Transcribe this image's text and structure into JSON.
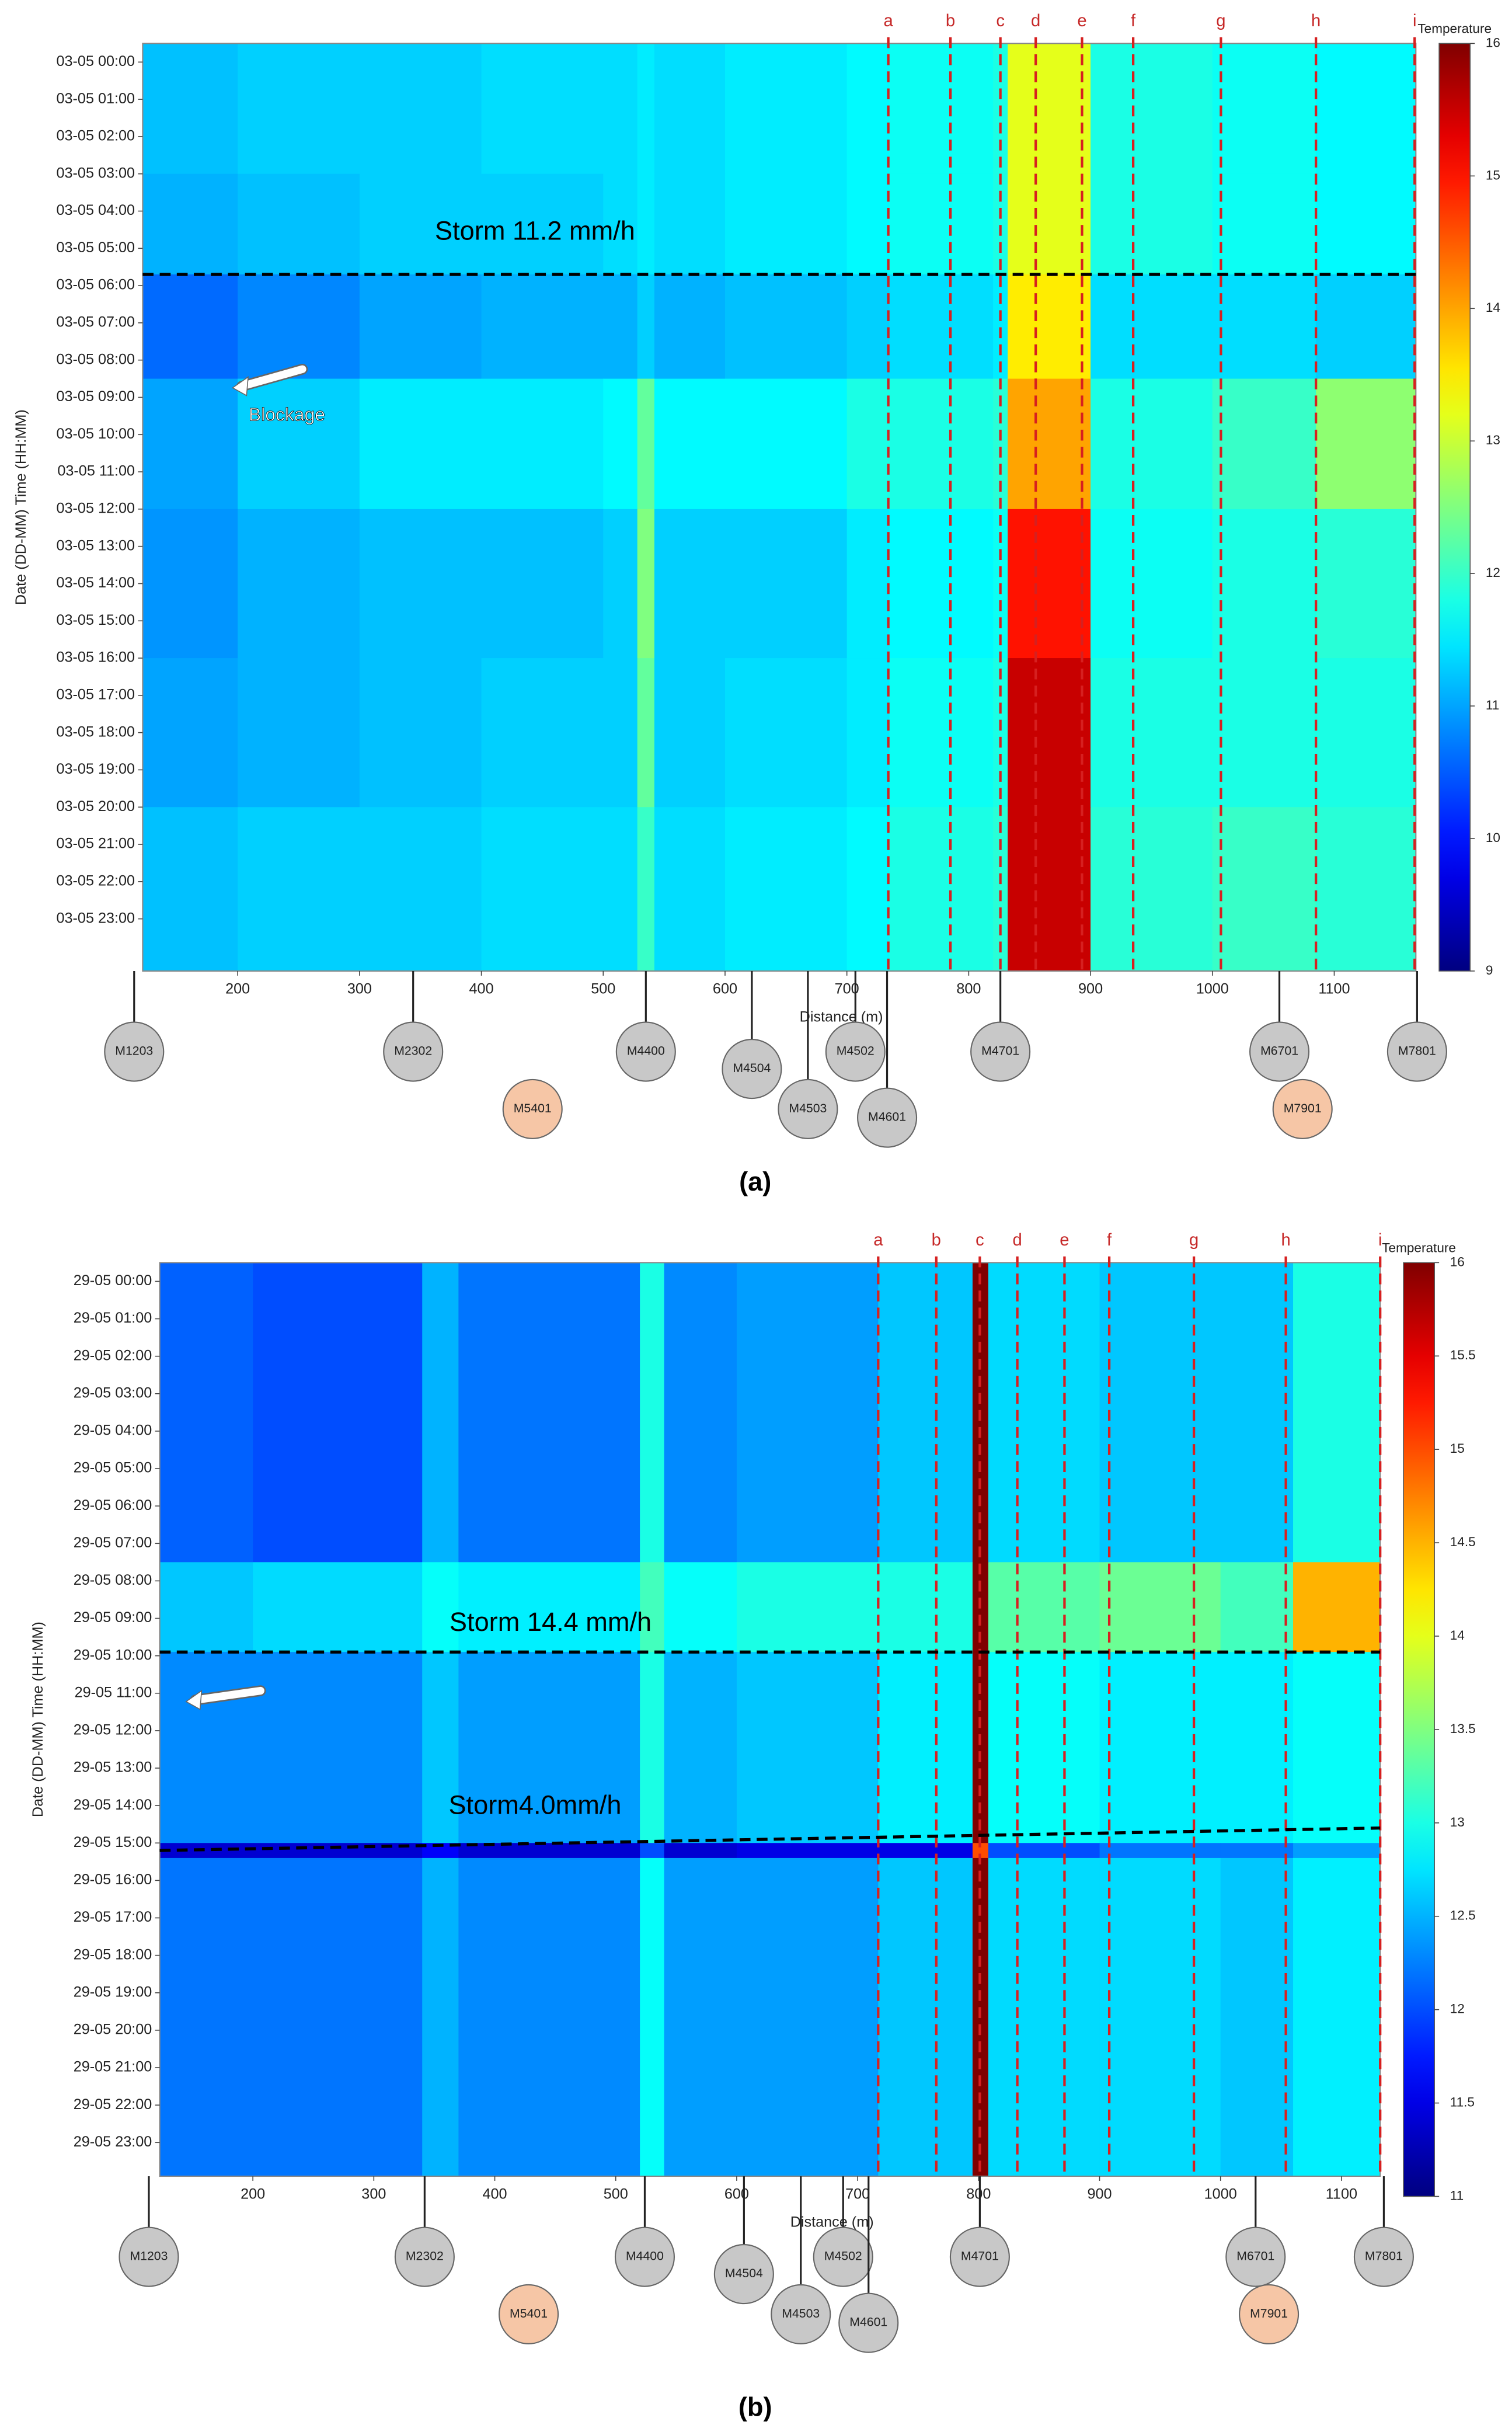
{
  "chart_data": [
    {
      "type": "heatmap",
      "panel_label": "(a)",
      "x_label": "Distance (m)",
      "y_label": "Date (DD-MM) Time (HH:MM)",
      "colorbar_label": "Temperature",
      "xlim": [
        122,
        1167
      ],
      "xticks": [
        200,
        300,
        400,
        500,
        600,
        700,
        800,
        900,
        1000,
        1100
      ],
      "ylim": [
        -0.5,
        24.4
      ],
      "yticks": [
        {
          "value": 0,
          "label": "03-05 00:00"
        },
        {
          "value": 1,
          "label": "03-05 01:00"
        },
        {
          "value": 2,
          "label": "03-05 02:00"
        },
        {
          "value": 3,
          "label": "03-05 03:00"
        },
        {
          "value": 4,
          "label": "03-05 04:00"
        },
        {
          "value": 5,
          "label": "03-05 05:00"
        },
        {
          "value": 6,
          "label": "03-05 06:00"
        },
        {
          "value": 7,
          "label": "03-05 07:00"
        },
        {
          "value": 8,
          "label": "03-05 08:00"
        },
        {
          "value": 9,
          "label": "03-05 09:00"
        },
        {
          "value": 10,
          "label": "03-05 10:00"
        },
        {
          "value": 11,
          "label": "03-05 11:00"
        },
        {
          "value": 12,
          "label": "03-05 12:00"
        },
        {
          "value": 13,
          "label": "03-05 13:00"
        },
        {
          "value": 14,
          "label": "03-05 14:00"
        },
        {
          "value": 15,
          "label": "03-05 15:00"
        },
        {
          "value": 16,
          "label": "03-05 16:00"
        },
        {
          "value": 17,
          "label": "03-05 17:00"
        },
        {
          "value": 18,
          "label": "03-05 18:00"
        },
        {
          "value": 19,
          "label": "03-05 19:00"
        },
        {
          "value": 20,
          "label": "03-05 20:00"
        },
        {
          "value": 21,
          "label": "03-05 21:00"
        },
        {
          "value": 22,
          "label": "03-05 22:00"
        },
        {
          "value": 23,
          "label": "03-05 23:00"
        }
      ],
      "clim": [
        9,
        16
      ],
      "cticks": [
        9,
        10,
        11,
        12,
        13,
        14,
        15,
        16
      ],
      "x_bins": [
        122,
        200,
        300,
        400,
        500,
        528,
        542,
        600,
        700,
        735,
        820,
        832,
        900,
        1000,
        1085,
        1167
      ],
      "y_bins": [
        -0.5,
        3,
        5.7,
        8.5,
        12,
        16,
        20,
        24.4
      ],
      "z": [
        [
          11.2,
          11.3,
          11.3,
          11.4,
          11.4,
          11.5,
          11.4,
          11.5,
          11.6,
          11.7,
          11.8,
          13.2,
          11.8,
          11.7,
          11.6
        ],
        [
          11.1,
          11.2,
          11.3,
          11.3,
          11.4,
          11.5,
          11.4,
          11.5,
          11.6,
          11.7,
          11.8,
          13.2,
          11.8,
          11.7,
          11.6
        ],
        [
          10.6,
          10.8,
          11.0,
          11.1,
          11.1,
          11.3,
          11.1,
          11.2,
          11.3,
          11.4,
          11.5,
          13.5,
          11.4,
          11.4,
          11.3
        ],
        [
          11.0,
          11.3,
          11.5,
          11.5,
          11.6,
          12.3,
          11.6,
          11.6,
          11.8,
          11.8,
          11.9,
          14.0,
          11.8,
          12.0,
          12.6
        ],
        [
          10.9,
          11.1,
          11.2,
          11.2,
          11.3,
          12.5,
          11.3,
          11.3,
          11.5,
          11.6,
          11.7,
          15.0,
          11.7,
          11.8,
          11.9
        ],
        [
          11.0,
          11.1,
          11.2,
          11.3,
          11.3,
          12.3,
          11.3,
          11.4,
          11.5,
          11.7,
          11.8,
          15.5,
          11.8,
          11.8,
          11.8
        ],
        [
          11.2,
          11.3,
          11.3,
          11.4,
          11.4,
          12.0,
          11.4,
          11.5,
          11.6,
          11.8,
          11.9,
          15.5,
          11.9,
          12.0,
          11.9
        ]
      ],
      "vlines": [
        {
          "label": "a",
          "x": 734
        },
        {
          "label": "b",
          "x": 785
        },
        {
          "label": "c",
          "x": 826
        },
        {
          "label": "d",
          "x": 855
        },
        {
          "label": "e",
          "x": 893
        },
        {
          "label": "f",
          "x": 935
        },
        {
          "label": "g",
          "x": 1007
        },
        {
          "label": "h",
          "x": 1085
        },
        {
          "label": "i",
          "x": 1166
        }
      ],
      "hlines": [
        {
          "label": "Storm 11.2 mm/h",
          "y": [
            5.7,
            5.7
          ]
        }
      ],
      "annotations": [
        {
          "text": "Blockage"
        }
      ],
      "manholes": [
        {
          "name": "M1203",
          "x": 115,
          "color": "#c8c8c8"
        },
        {
          "name": "M2302",
          "x": 344,
          "color": "#c8c8c8"
        },
        {
          "name": "M4400",
          "x": 535,
          "color": "#c8c8c8"
        },
        {
          "name": "M5401",
          "x": 442,
          "color": "#f6c6a6"
        },
        {
          "name": "M4504",
          "x": 622,
          "color": "#c8c8c8"
        },
        {
          "name": "M4503",
          "x": 668,
          "color": "#c8c8c8"
        },
        {
          "name": "M4502",
          "x": 707,
          "color": "#c8c8c8"
        },
        {
          "name": "M4601",
          "x": 733,
          "color": "#c8c8c8"
        },
        {
          "name": "M4701",
          "x": 826,
          "color": "#c8c8c8"
        },
        {
          "name": "M6701",
          "x": 1055,
          "color": "#c8c8c8"
        },
        {
          "name": "M7901",
          "x": 1074,
          "color": "#f6c6a6"
        },
        {
          "name": "M7801",
          "x": 1168,
          "color": "#c8c8c8"
        }
      ]
    },
    {
      "type": "heatmap",
      "panel_label": "(b)",
      "x_label": "Distance (m)",
      "y_label": "Date (DD-MM) Time (HH:MM)",
      "colorbar_label": "Temperature",
      "xlim": [
        123,
        1132
      ],
      "xticks": [
        200,
        300,
        400,
        500,
        600,
        700,
        800,
        900,
        1000,
        1100
      ],
      "ylim": [
        -0.5,
        23.9
      ],
      "yticks": [
        {
          "value": 0,
          "label": "29-05 00:00"
        },
        {
          "value": 1,
          "label": "29-05 01:00"
        },
        {
          "value": 2,
          "label": "29-05 02:00"
        },
        {
          "value": 3,
          "label": "29-05 03:00"
        },
        {
          "value": 4,
          "label": "29-05 04:00"
        },
        {
          "value": 5,
          "label": "29-05 05:00"
        },
        {
          "value": 6,
          "label": "29-05 06:00"
        },
        {
          "value": 7,
          "label": "29-05 07:00"
        },
        {
          "value": 8,
          "label": "29-05 08:00"
        },
        {
          "value": 9,
          "label": "29-05 09:00"
        },
        {
          "value": 10,
          "label": "29-05 10:00"
        },
        {
          "value": 11,
          "label": "29-05 11:00"
        },
        {
          "value": 12,
          "label": "29-05 12:00"
        },
        {
          "value": 13,
          "label": "29-05 13:00"
        },
        {
          "value": 14,
          "label": "29-05 14:00"
        },
        {
          "value": 15,
          "label": "29-05 15:00"
        },
        {
          "value": 16,
          "label": "29-05 16:00"
        },
        {
          "value": 17,
          "label": "29-05 17:00"
        },
        {
          "value": 18,
          "label": "29-05 18:00"
        },
        {
          "value": 19,
          "label": "29-05 19:00"
        },
        {
          "value": 20,
          "label": "29-05 20:00"
        },
        {
          "value": 21,
          "label": "29-05 21:00"
        },
        {
          "value": 22,
          "label": "29-05 22:00"
        },
        {
          "value": 23,
          "label": "29-05 23:00"
        }
      ],
      "clim": [
        11,
        16
      ],
      "cticks": [
        11,
        11.5,
        12,
        12.5,
        13,
        13.5,
        14,
        14.5,
        15,
        15.5,
        16
      ],
      "x_bins": [
        123,
        200,
        340,
        370,
        520,
        540,
        600,
        717,
        795,
        808,
        900,
        1000,
        1060,
        1132
      ],
      "y_bins": [
        -0.5,
        7.5,
        9.9,
        15,
        15.4,
        23.9
      ],
      "z": [
        [
          12.1,
          12.0,
          12.5,
          12.2,
          13.0,
          12.3,
          12.4,
          12.6,
          16.0,
          12.7,
          12.6,
          12.6,
          13.0
        ],
        [
          12.6,
          12.7,
          12.9,
          12.8,
          13.2,
          12.9,
          13.0,
          13.0,
          16.0,
          13.3,
          13.4,
          13.2,
          14.5
        ],
        [
          12.3,
          12.3,
          12.6,
          12.4,
          13.0,
          12.5,
          12.6,
          12.8,
          16.0,
          12.9,
          12.8,
          12.8,
          12.9
        ],
        [
          11.4,
          11.4,
          11.6,
          11.4,
          12.0,
          11.4,
          11.5,
          11.5,
          15.0,
          12.0,
          12.2,
          12.2,
          12.4
        ],
        [
          12.2,
          12.2,
          12.5,
          12.3,
          12.9,
          12.4,
          12.4,
          12.6,
          16.0,
          12.7,
          12.7,
          12.6,
          12.8
        ]
      ],
      "vlines": [
        {
          "label": "a",
          "x": 717
        },
        {
          "label": "b",
          "x": 765
        },
        {
          "label": "c",
          "x": 801
        },
        {
          "label": "d",
          "x": 832
        },
        {
          "label": "e",
          "x": 871
        },
        {
          "label": "f",
          "x": 908
        },
        {
          "label": "g",
          "x": 978
        },
        {
          "label": "h",
          "x": 1054
        },
        {
          "label": "i",
          "x": 1132
        }
      ],
      "hlines": [
        {
          "label": "Storm 14.4 mm/h",
          "y": [
            9.9,
            9.9
          ]
        },
        {
          "label": "Storm4.0mm/h",
          "y": [
            15.2,
            14.6
          ]
        }
      ],
      "manholes": [
        {
          "name": "M1203",
          "x": 114,
          "color": "#c8c8c8"
        },
        {
          "name": "M2302",
          "x": 342,
          "color": "#c8c8c8"
        },
        {
          "name": "M4400",
          "x": 524,
          "color": "#c8c8c8"
        },
        {
          "name": "M5401",
          "x": 428,
          "color": "#f6c6a6"
        },
        {
          "name": "M4504",
          "x": 606,
          "color": "#c8c8c8"
        },
        {
          "name": "M4503",
          "x": 653,
          "color": "#c8c8c8"
        },
        {
          "name": "M4502",
          "x": 688,
          "color": "#c8c8c8"
        },
        {
          "name": "M4601",
          "x": 709,
          "color": "#c8c8c8"
        },
        {
          "name": "M4701",
          "x": 801,
          "color": "#c8c8c8"
        },
        {
          "name": "M6701",
          "x": 1029,
          "color": "#c8c8c8"
        },
        {
          "name": "M7901",
          "x": 1040,
          "color": "#f6c6a6"
        },
        {
          "name": "M7801",
          "x": 1135,
          "color": "#c8c8c8"
        }
      ]
    }
  ]
}
